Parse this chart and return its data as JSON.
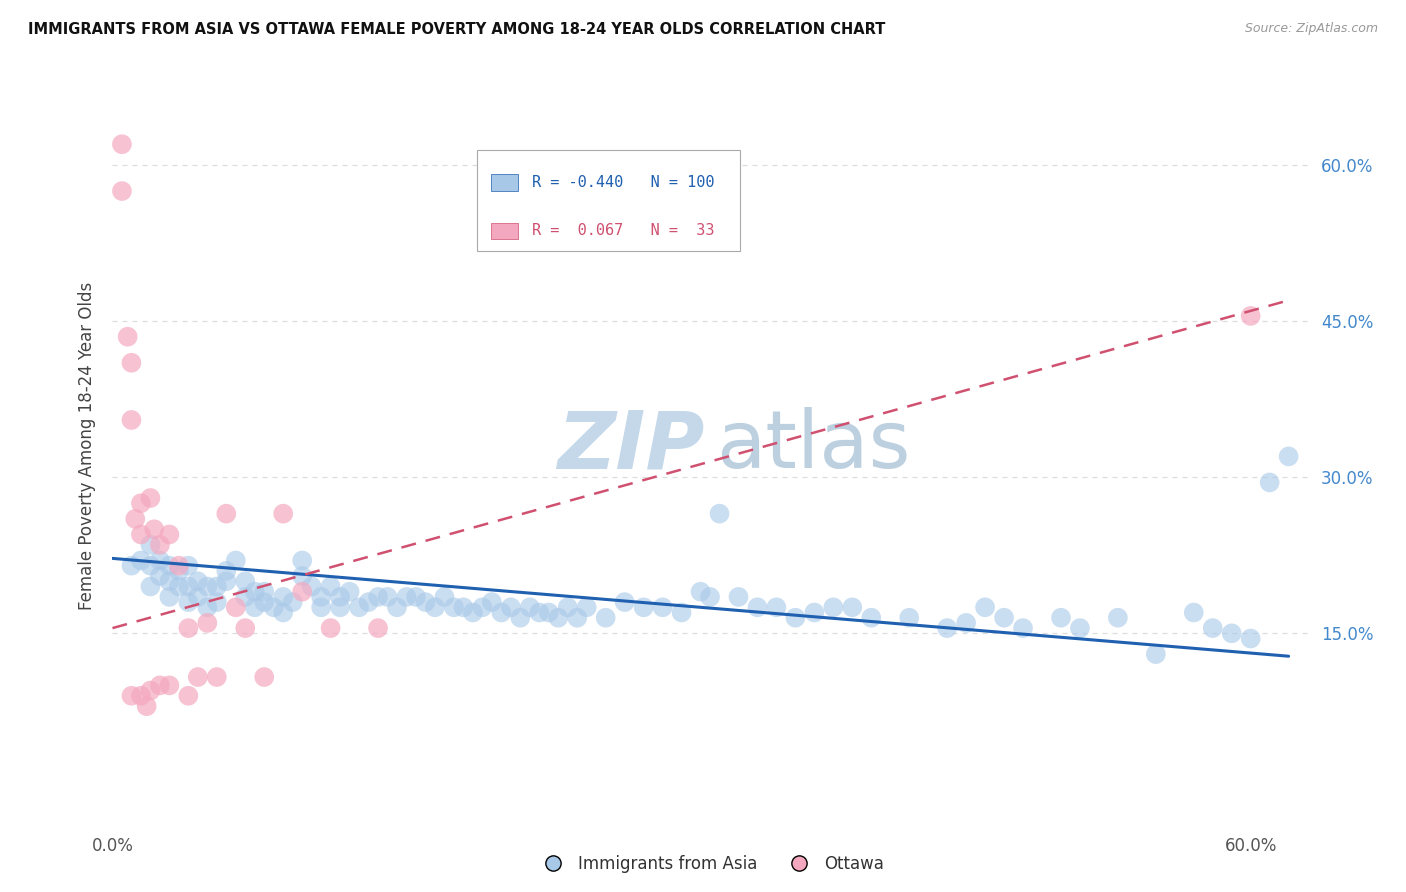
{
  "title": "IMMIGRANTS FROM ASIA VS OTTAWA FEMALE POVERTY AMONG 18-24 YEAR OLDS CORRELATION CHART",
  "source": "Source: ZipAtlas.com",
  "ylabel": "Female Poverty Among 18-24 Year Olds",
  "right_yticks": [
    "60.0%",
    "45.0%",
    "30.0%",
    "15.0%"
  ],
  "right_ytick_vals": [
    0.6,
    0.45,
    0.3,
    0.15
  ],
  "legend_label1": "Immigrants from Asia",
  "legend_label2": "Ottawa",
  "blue_color": "#a8c8e8",
  "pink_color": "#f4a8c0",
  "blue_line_color": "#2060b0",
  "pink_line_color": "#d05070",
  "watermark_zip": "ZIP",
  "watermark_atlas": "atlas",
  "xlim": [
    0.0,
    0.63
  ],
  "ylim": [
    -0.03,
    0.69
  ],
  "grid_yticks": [
    0.15,
    0.3,
    0.45,
    0.6
  ],
  "scatter_blue_x": [
    0.01,
    0.015,
    0.02,
    0.02,
    0.02,
    0.025,
    0.025,
    0.03,
    0.03,
    0.03,
    0.035,
    0.035,
    0.04,
    0.04,
    0.04,
    0.045,
    0.045,
    0.05,
    0.05,
    0.055,
    0.055,
    0.06,
    0.06,
    0.065,
    0.07,
    0.07,
    0.075,
    0.075,
    0.08,
    0.08,
    0.085,
    0.09,
    0.09,
    0.095,
    0.1,
    0.1,
    0.105,
    0.11,
    0.11,
    0.115,
    0.12,
    0.12,
    0.125,
    0.13,
    0.135,
    0.14,
    0.145,
    0.15,
    0.155,
    0.16,
    0.165,
    0.17,
    0.175,
    0.18,
    0.185,
    0.19,
    0.195,
    0.2,
    0.205,
    0.21,
    0.215,
    0.22,
    0.225,
    0.23,
    0.235,
    0.24,
    0.245,
    0.25,
    0.26,
    0.27,
    0.28,
    0.29,
    0.3,
    0.31,
    0.315,
    0.32,
    0.33,
    0.34,
    0.35,
    0.36,
    0.37,
    0.38,
    0.39,
    0.4,
    0.42,
    0.44,
    0.45,
    0.46,
    0.47,
    0.48,
    0.5,
    0.51,
    0.53,
    0.55,
    0.57,
    0.58,
    0.59,
    0.6,
    0.61,
    0.62
  ],
  "scatter_blue_y": [
    0.215,
    0.22,
    0.235,
    0.215,
    0.195,
    0.22,
    0.205,
    0.215,
    0.2,
    0.185,
    0.21,
    0.195,
    0.215,
    0.195,
    0.18,
    0.2,
    0.185,
    0.195,
    0.175,
    0.195,
    0.18,
    0.21,
    0.2,
    0.22,
    0.2,
    0.185,
    0.19,
    0.175,
    0.19,
    0.18,
    0.175,
    0.185,
    0.17,
    0.18,
    0.22,
    0.205,
    0.195,
    0.185,
    0.175,
    0.195,
    0.185,
    0.175,
    0.19,
    0.175,
    0.18,
    0.185,
    0.185,
    0.175,
    0.185,
    0.185,
    0.18,
    0.175,
    0.185,
    0.175,
    0.175,
    0.17,
    0.175,
    0.18,
    0.17,
    0.175,
    0.165,
    0.175,
    0.17,
    0.17,
    0.165,
    0.175,
    0.165,
    0.175,
    0.165,
    0.18,
    0.175,
    0.175,
    0.17,
    0.19,
    0.185,
    0.265,
    0.185,
    0.175,
    0.175,
    0.165,
    0.17,
    0.175,
    0.175,
    0.165,
    0.165,
    0.155,
    0.16,
    0.175,
    0.165,
    0.155,
    0.165,
    0.155,
    0.165,
    0.13,
    0.17,
    0.155,
    0.15,
    0.145,
    0.295,
    0.32
  ],
  "scatter_pink_x": [
    0.005,
    0.005,
    0.008,
    0.01,
    0.01,
    0.01,
    0.012,
    0.015,
    0.015,
    0.015,
    0.018,
    0.02,
    0.02,
    0.022,
    0.025,
    0.025,
    0.03,
    0.03,
    0.035,
    0.04,
    0.04,
    0.045,
    0.05,
    0.055,
    0.06,
    0.065,
    0.07,
    0.08,
    0.09,
    0.1,
    0.115,
    0.14,
    0.6
  ],
  "scatter_pink_y": [
    0.62,
    0.575,
    0.435,
    0.41,
    0.355,
    0.09,
    0.26,
    0.245,
    0.09,
    0.275,
    0.08,
    0.28,
    0.095,
    0.25,
    0.235,
    0.1,
    0.245,
    0.1,
    0.215,
    0.155,
    0.09,
    0.108,
    0.16,
    0.108,
    0.265,
    0.175,
    0.155,
    0.108,
    0.265,
    0.19,
    0.155,
    0.155,
    0.455
  ],
  "blue_trend_x": [
    0.0,
    0.62
  ],
  "blue_trend_y": [
    0.222,
    0.128
  ],
  "pink_trend_x": [
    0.0,
    0.62
  ],
  "pink_trend_y": [
    0.155,
    0.47
  ],
  "grid_color": "#dddddd",
  "grid_linestyle": "dotted"
}
